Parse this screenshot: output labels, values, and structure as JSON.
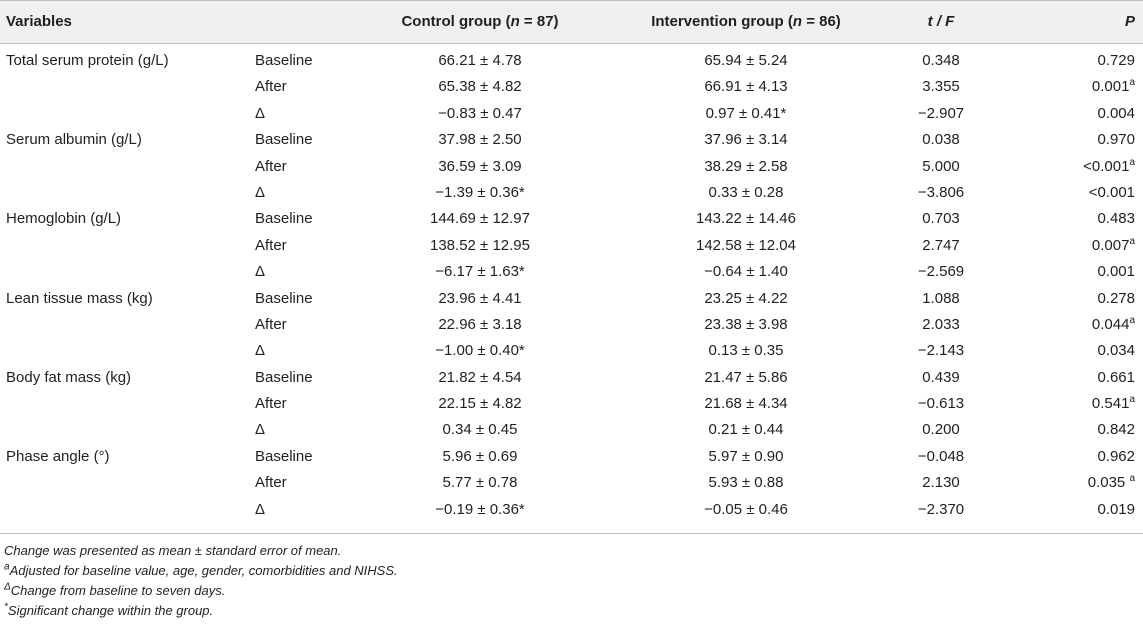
{
  "header": {
    "variables": "Variables",
    "control": "Control group (",
    "control_n": "n",
    "control_rest": " = 87)",
    "intervention": "Intervention group (",
    "intervention_n": "n",
    "intervention_rest": " = 86)",
    "tf": "t / F",
    "p": "P"
  },
  "rows": [
    {
      "variable": "Total serum protein (g/L)",
      "time": "Baseline",
      "control": "66.21 ± 4.78",
      "intervention": "65.94 ± 5.24",
      "tf": "0.348",
      "p": "0.729",
      "sup": ""
    },
    {
      "variable": "",
      "time": "After",
      "control": "65.38 ± 4.82",
      "intervention": "66.91 ± 4.13",
      "tf": "3.355",
      "p": "0.001",
      "sup": "a"
    },
    {
      "variable": "",
      "time": "Δ",
      "control": "−0.83 ± 0.47",
      "intervention": "0.97 ± 0.41*",
      "tf": "−2.907",
      "p": "0.004",
      "sup": ""
    },
    {
      "variable": "Serum albumin (g/L)",
      "time": "Baseline",
      "control": "37.98 ± 2.50",
      "intervention": "37.96 ± 3.14",
      "tf": "0.038",
      "p": "0.970",
      "sup": ""
    },
    {
      "variable": "",
      "time": "After",
      "control": "36.59 ± 3.09",
      "intervention": "38.29 ± 2.58",
      "tf": "5.000",
      "p": "<0.001",
      "sup": "a"
    },
    {
      "variable": "",
      "time": "Δ",
      "control": "−1.39 ± 0.36*",
      "intervention": "0.33 ± 0.28",
      "tf": "−3.806",
      "p": "<0.001",
      "sup": ""
    },
    {
      "variable": "Hemoglobin (g/L)",
      "time": "Baseline",
      "control": "144.69 ± 12.97",
      "intervention": "143.22 ± 14.46",
      "tf": "0.703",
      "p": "0.483",
      "sup": ""
    },
    {
      "variable": "",
      "time": "After",
      "control": "138.52 ± 12.95",
      "intervention": "142.58 ± 12.04",
      "tf": "2.747",
      "p": "0.007",
      "sup": "a"
    },
    {
      "variable": "",
      "time": "Δ",
      "control": "−6.17 ± 1.63*",
      "intervention": "−0.64 ± 1.40",
      "tf": "−2.569",
      "p": "0.001",
      "sup": ""
    },
    {
      "variable": "Lean tissue mass (kg)",
      "time": "Baseline",
      "control": "23.96 ± 4.41",
      "intervention": "23.25 ± 4.22",
      "tf": "1.088",
      "p": "0.278",
      "sup": ""
    },
    {
      "variable": "",
      "time": "After",
      "control": "22.96 ± 3.18",
      "intervention": "23.38 ± 3.98",
      "tf": "2.033",
      "p": "0.044",
      "sup": "a"
    },
    {
      "variable": "",
      "time": "Δ",
      "control": "−1.00 ± 0.40*",
      "intervention": "0.13 ± 0.35",
      "tf": "−2.143",
      "p": "0.034",
      "sup": ""
    },
    {
      "variable": "Body fat mass (kg)",
      "time": "Baseline",
      "control": "21.82 ± 4.54",
      "intervention": "21.47 ± 5.86",
      "tf": "0.439",
      "p": "0.661",
      "sup": ""
    },
    {
      "variable": "",
      "time": "After",
      "control": "22.15 ± 4.82",
      "intervention": "21.68 ± 4.34",
      "tf": "−0.613",
      "p": "0.541",
      "sup": "a"
    },
    {
      "variable": "",
      "time": "Δ",
      "control": "0.34 ± 0.45",
      "intervention": "0.21 ± 0.44",
      "tf": "0.200",
      "p": "0.842",
      "sup": ""
    },
    {
      "variable": "Phase angle (°)",
      "time": "Baseline",
      "control": "5.96 ± 0.69",
      "intervention": "5.97 ± 0.90",
      "tf": "−0.048",
      "p": "0.962",
      "sup": ""
    },
    {
      "variable": "",
      "time": "After",
      "control": "5.77 ± 0.78",
      "intervention": "5.93 ± 0.88",
      "tf": "2.130",
      "p": "0.035 ",
      "sup": "a"
    },
    {
      "variable": "",
      "time": "Δ",
      "control": "−0.19 ± 0.36*",
      "intervention": "−0.05 ± 0.46",
      "tf": "−2.370",
      "p": "0.019",
      "sup": ""
    }
  ],
  "footnotes": {
    "f1_text": "Change was presented as mean ± standard error of mean.",
    "f2_sup": "a",
    "f2_text": "Adjusted for baseline value, age, gender, comorbidities and NIHSS.",
    "f3_sup": "Δ",
    "f3_text": "Change from baseline to seven days.",
    "f4_sup": "*",
    "f4_text": "Significant change within the group."
  }
}
